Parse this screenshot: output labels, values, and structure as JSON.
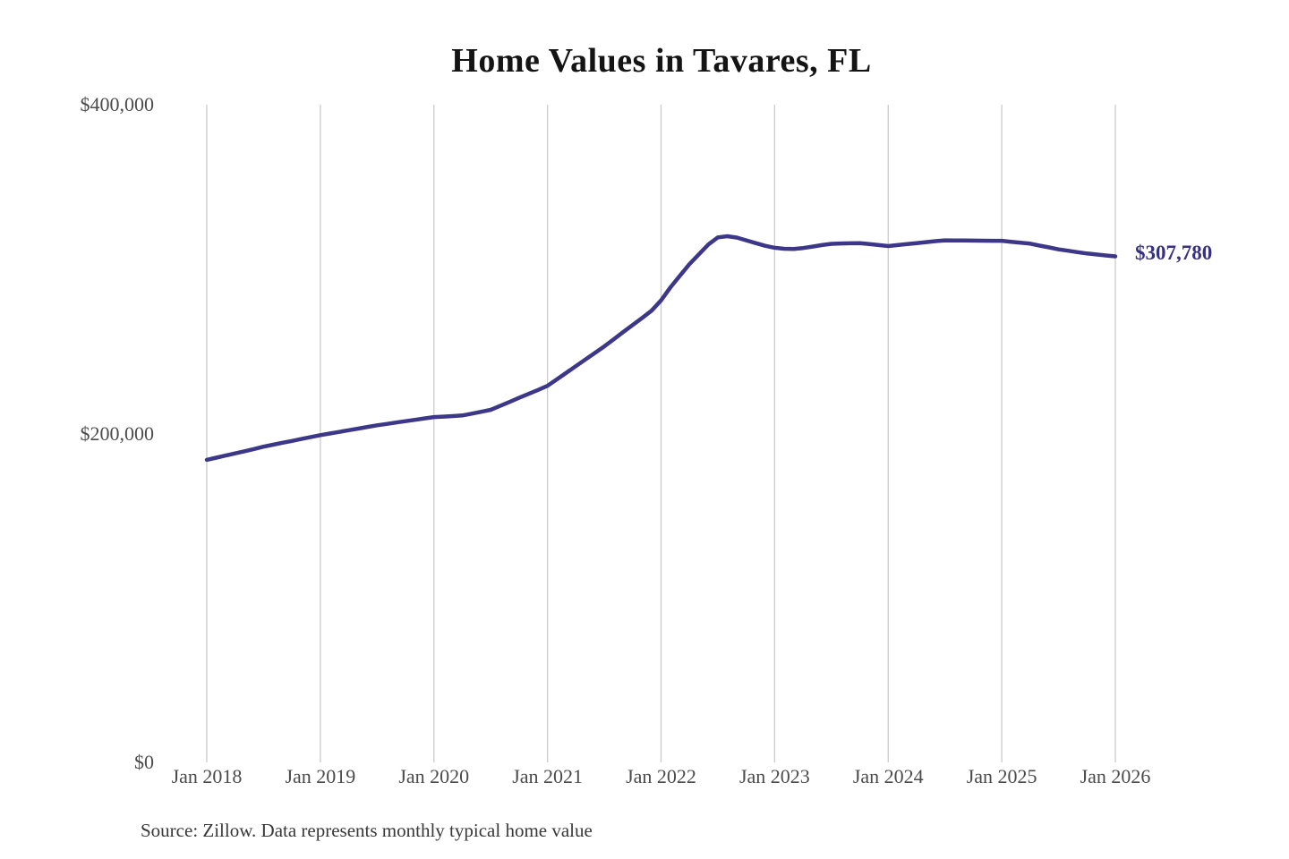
{
  "page": {
    "background": "#ffffff"
  },
  "chart_data": {
    "type": "line",
    "title": "Home Values in Tavares, FL",
    "source_note": "Source: Zillow. Data represents monthly typical home value",
    "xlabel": "",
    "ylabel": "",
    "ylim": [
      0,
      400000
    ],
    "grid": "vertical-gridlines-only",
    "legend": "none",
    "end_label": "$307,780",
    "end_value": 307780,
    "colors": {
      "line": "#3d3789",
      "grid": "#cbcbcb",
      "axis_text": "#4b4b4b",
      "title_text": "#141414",
      "end_label_text": "#363183",
      "source_text": "#383838"
    },
    "yticks": [
      {
        "value": 0,
        "label": "$0"
      },
      {
        "value": 200000,
        "label": "$200,000"
      },
      {
        "value": 400000,
        "label": "$400,000"
      }
    ],
    "xticks": [
      "Jan 2018",
      "Jan 2019",
      "Jan 2020",
      "Jan 2021",
      "Jan 2022",
      "Jan 2023",
      "Jan 2024",
      "Jan 2025",
      "Jan 2026"
    ],
    "series": [
      {
        "name": "Monthly typical home value",
        "x": [
          "2018-01",
          "2018-02",
          "2018-03",
          "2018-04",
          "2018-05",
          "2018-06",
          "2018-07",
          "2018-08",
          "2018-09",
          "2018-10",
          "2018-11",
          "2018-12",
          "2019-01",
          "2019-02",
          "2019-03",
          "2019-04",
          "2019-05",
          "2019-06",
          "2019-07",
          "2019-08",
          "2019-09",
          "2019-10",
          "2019-11",
          "2019-12",
          "2020-01",
          "2020-02",
          "2020-03",
          "2020-04",
          "2020-05",
          "2020-06",
          "2020-07",
          "2020-08",
          "2020-09",
          "2020-10",
          "2020-11",
          "2020-12",
          "2021-01",
          "2021-02",
          "2021-03",
          "2021-04",
          "2021-05",
          "2021-06",
          "2021-07",
          "2021-08",
          "2021-09",
          "2021-10",
          "2021-11",
          "2021-12",
          "2022-01",
          "2022-02",
          "2022-03",
          "2022-04",
          "2022-05",
          "2022-06",
          "2022-07",
          "2022-08",
          "2022-09",
          "2022-10",
          "2022-11",
          "2022-12",
          "2023-01",
          "2023-02",
          "2023-03",
          "2023-04",
          "2023-05",
          "2023-06",
          "2023-07",
          "2023-08",
          "2023-09",
          "2023-10",
          "2023-11",
          "2023-12",
          "2024-01",
          "2024-02",
          "2024-03",
          "2024-04",
          "2024-05",
          "2024-06",
          "2024-07",
          "2024-08",
          "2024-09",
          "2024-10",
          "2024-11",
          "2024-12",
          "2025-01",
          "2025-02",
          "2025-03",
          "2025-04",
          "2025-05",
          "2025-06",
          "2025-07",
          "2025-08",
          "2025-09",
          "2025-10",
          "2025-11",
          "2025-12",
          "2026-01"
        ],
        "values": [
          184000,
          185300,
          186600,
          187900,
          189200,
          190600,
          192000,
          193200,
          194400,
          195500,
          196700,
          197900,
          199000,
          200000,
          201000,
          202000,
          203000,
          204000,
          205000,
          205800,
          206700,
          207500,
          208300,
          209200,
          210000,
          210300,
          210600,
          211000,
          212100,
          213200,
          214400,
          216800,
          219200,
          221700,
          224100,
          226500,
          229000,
          233000,
          237000,
          241000,
          245000,
          249000,
          253000,
          257300,
          261700,
          266000,
          270300,
          274700,
          281000,
          289000,
          296000,
          303000,
          309000,
          315000,
          319300,
          320000,
          319200,
          317500,
          315800,
          314200,
          313000,
          312400,
          312200,
          312800,
          313700,
          314600,
          315400,
          315600,
          315700,
          315800,
          315200,
          314600,
          314000,
          314600,
          315200,
          315800,
          316400,
          317000,
          317500,
          317450,
          317400,
          317350,
          317300,
          317250,
          317200,
          316600,
          316100,
          315500,
          314300,
          313200,
          312000,
          311200,
          310300,
          309500,
          308900,
          308300,
          307780
        ]
      }
    ]
  }
}
